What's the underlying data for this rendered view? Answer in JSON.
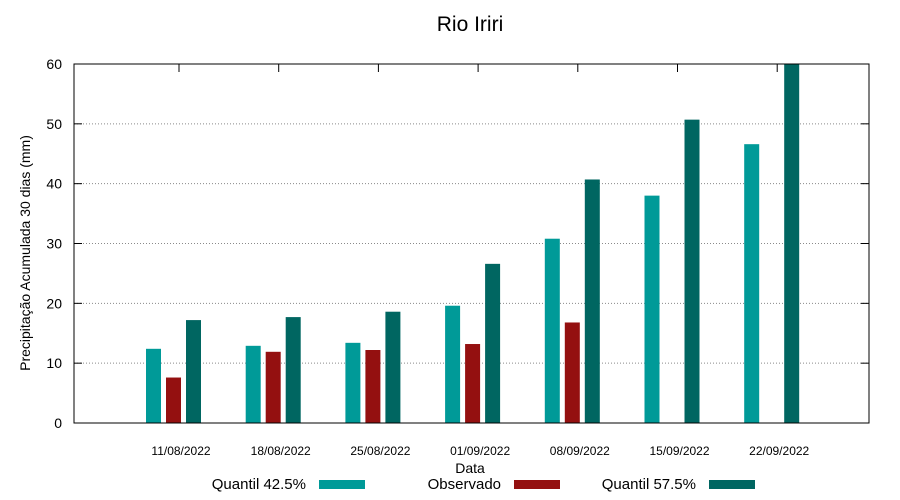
{
  "chart_data": {
    "type": "bar",
    "title": "Rio Iriri",
    "xlabel": "Data",
    "ylabel": "Precipitação Acumulada 30 dias (mm)",
    "ylim": [
      0,
      60
    ],
    "yticks": [
      0,
      10,
      20,
      30,
      40,
      50,
      60
    ],
    "grid": "horizontal dotted",
    "categories": [
      "11/08/2022",
      "18/08/2022",
      "25/08/2022",
      "01/09/2022",
      "08/09/2022",
      "15/09/2022",
      "22/09/2022"
    ],
    "series": [
      {
        "name": "Quantil 42.5%",
        "color": "#009a98",
        "values": [
          12.4,
          12.9,
          13.4,
          19.6,
          30.8,
          38.0,
          46.6
        ]
      },
      {
        "name": "Observado",
        "color": "#941010",
        "values": [
          7.6,
          11.9,
          12.2,
          13.2,
          16.8,
          null,
          null
        ]
      },
      {
        "name": "Quantil 57.5%",
        "color": "#006661",
        "values": [
          17.2,
          17.7,
          18.6,
          26.6,
          40.7,
          50.7,
          60.0
        ]
      }
    ],
    "legend_position": "bottom"
  }
}
